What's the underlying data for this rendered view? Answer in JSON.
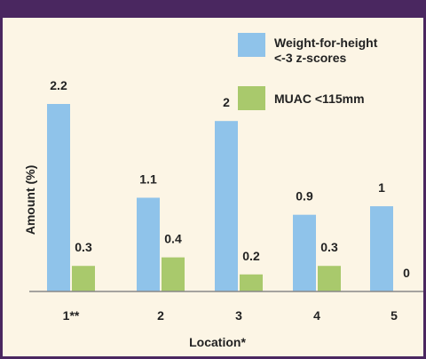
{
  "chart_data": {
    "type": "bar",
    "title": "",
    "xlabel": "Location*",
    "ylabel": "Amount (%)",
    "categories": [
      "1**",
      "2",
      "3",
      "4",
      "5"
    ],
    "series": [
      {
        "name": "Weight-for-height <-3 z-scores",
        "legend_lines": [
          "Weight-for-height",
          "<-3 z-scores"
        ],
        "color": "#8fc3ea",
        "values": [
          2.2,
          1.1,
          2,
          0.9,
          1
        ],
        "labels": [
          "2.2",
          "1.1",
          "2",
          "0.9",
          "1"
        ]
      },
      {
        "name": "MUAC <115mm",
        "legend_lines": [
          "MUAC <115mm"
        ],
        "color": "#a9c96c",
        "values": [
          0.3,
          0.4,
          0.2,
          0.3,
          0
        ],
        "labels": [
          "0.3",
          "0.4",
          "0.2",
          "0.3",
          "0"
        ]
      }
    ],
    "ylim": [
      0,
      2.2
    ],
    "grid": false,
    "legend": "top-right"
  },
  "colors": {
    "frame": "#4a2760",
    "background": "#fcf5e5",
    "axis": "#888888"
  }
}
